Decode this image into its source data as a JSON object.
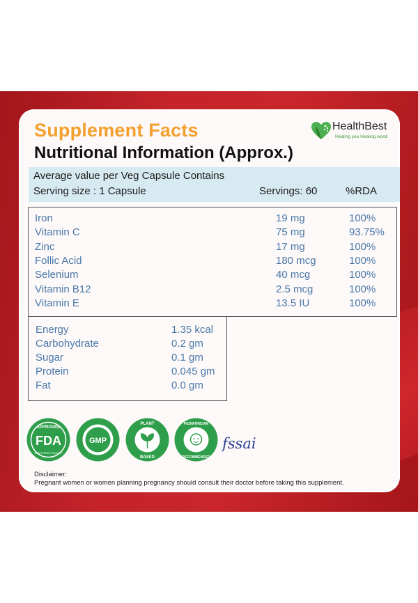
{
  "header": {
    "title": "Supplement Facts",
    "subtitle": "Nutritional Information (Approx.)",
    "brand_name": "HealthBest",
    "brand_tagline": "Healing you Healing world"
  },
  "serving": {
    "description": "Average value per Veg Capsule Contains",
    "size": "Serving size : 1 Capsule",
    "servings": "Servings: 60",
    "rda_header": "%RDA"
  },
  "nutrients": [
    {
      "name": "Iron",
      "amount": "19 mg",
      "rda": "100%"
    },
    {
      "name": "Vitamin C",
      "amount": "75 mg",
      "rda": "93.75%"
    },
    {
      "name": "Zinc",
      "amount": "17 mg",
      "rda": "100%"
    },
    {
      "name": "Follic Acid",
      "amount": "180 mcg",
      "rda": "100%"
    },
    {
      "name": "Selenium",
      "amount": "40 mcg",
      "rda": "100%"
    },
    {
      "name": "Vitamin B12",
      "amount": "2.5 mcg",
      "rda": "100%"
    },
    {
      "name": "Vitamin E",
      "amount": "13.5 IU",
      "rda": "100%"
    }
  ],
  "energy": [
    {
      "name": "Energy",
      "amount": "1.35 kcal"
    },
    {
      "name": "Carbohydrate",
      "amount": "0.2 gm"
    },
    {
      "name": "Sugar",
      "amount": "0.1 gm"
    },
    {
      "name": "Protein",
      "amount": "0.045 gm"
    },
    {
      "name": "Fat",
      "amount": "0.0 gm"
    }
  ],
  "badges": {
    "fda_top": "APPROVED",
    "fda_main": "FDA",
    "fda_bottom": "REGISTERED FACILITY",
    "gmp": "GMP",
    "plant_top": "PLANT",
    "plant_bottom": "BASED",
    "pediatric_top": "PEDIATRICIAN",
    "pediatric_bottom": "RECOMMENDED",
    "fssai": "fssai"
  },
  "disclaimer": {
    "title": "Disclaimer:",
    "text": "Pregnant women or women planning pregnancy should consult their doctor before taking this supplement."
  },
  "colors": {
    "title_orange": "#f3a02f",
    "badge_green": "#2f9e4a",
    "value_blue": "#4a78a8",
    "band_red": "#c4242a"
  }
}
